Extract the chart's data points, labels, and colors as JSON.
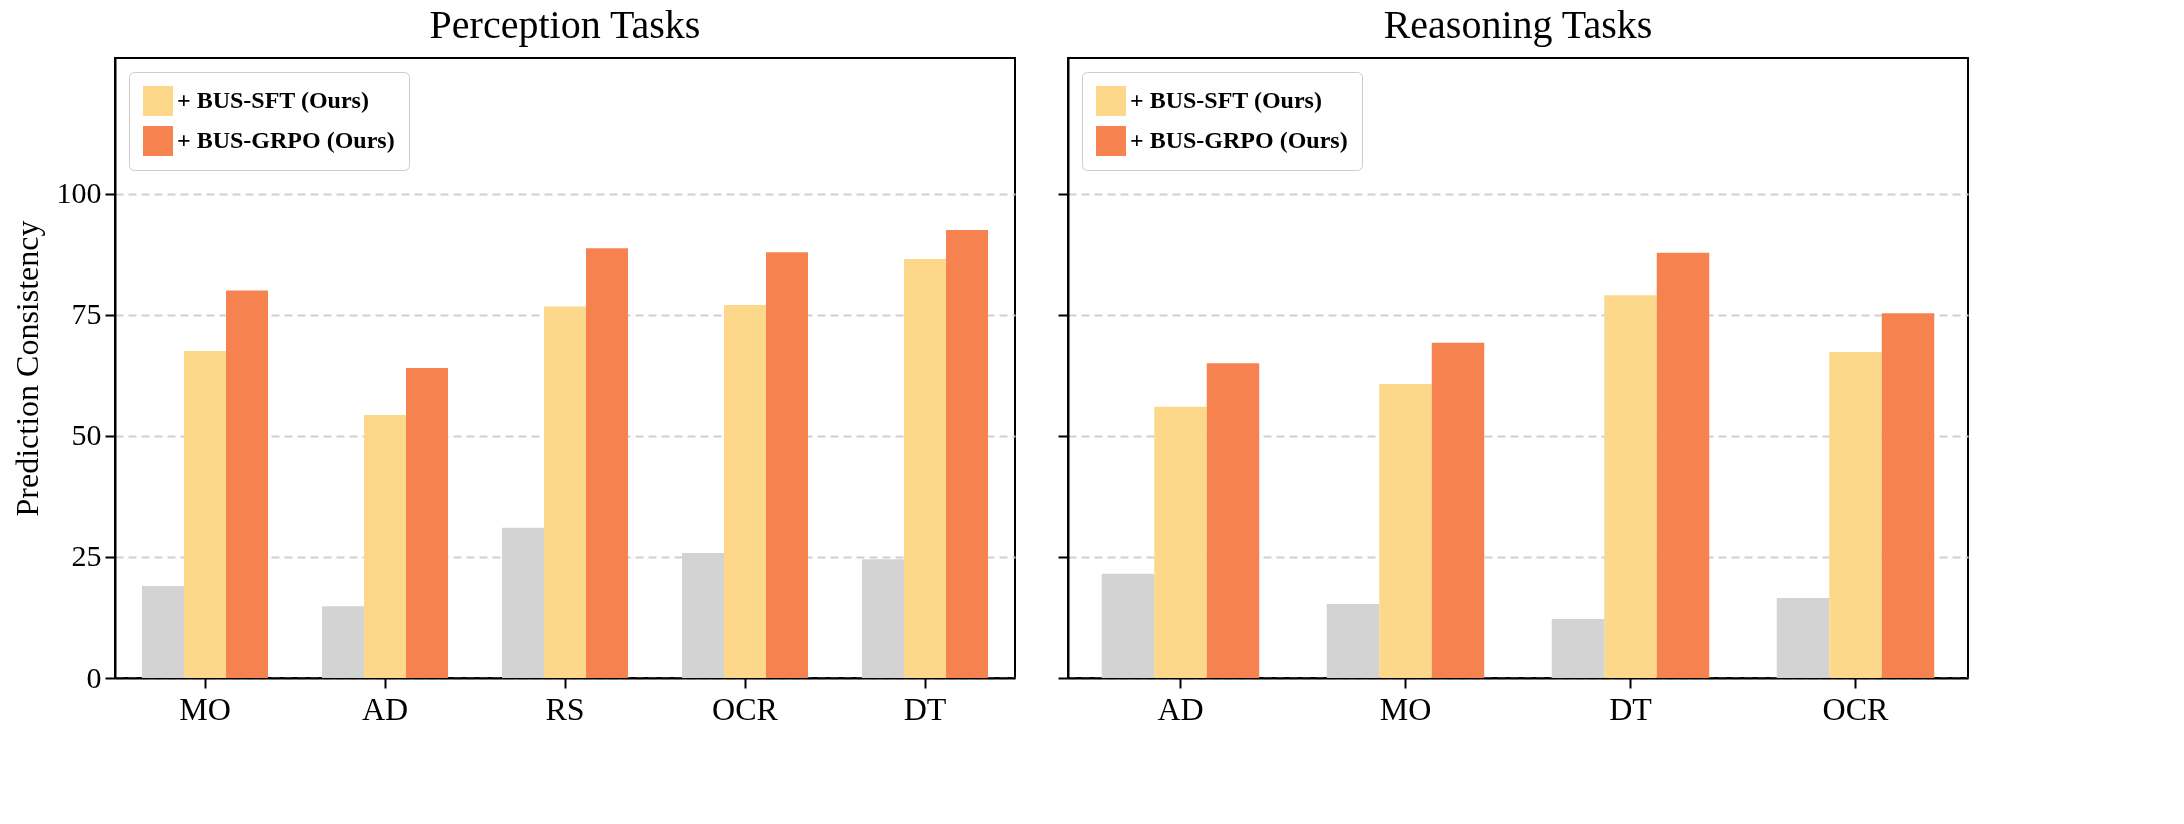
{
  "chart_data": [
    {
      "type": "bar",
      "title": "Perception Tasks",
      "ylabel": "Prediction  Consistency",
      "categories": [
        "MO",
        "AD",
        "RS",
        "OCR",
        "DT"
      ],
      "ylim": [
        0,
        128
      ],
      "yticks": [
        0,
        25,
        50,
        75,
        100
      ],
      "grid": "y",
      "legend": "top left",
      "series": [
        {
          "color": "#d3d3d3",
          "values": [
            19,
            14.8,
            31,
            25.8,
            24.5
          ]
        },
        {
          "name": "+ BUS-SFT (Ours)",
          "color": "#fdd88a",
          "values": [
            67.5,
            54.3,
            76.7,
            77,
            86.5
          ]
        },
        {
          "name": "+ BUS-GRPO (Ours)",
          "color": "#f6824f",
          "values": [
            80,
            64,
            88.7,
            87.9,
            92.5
          ]
        }
      ]
    },
    {
      "type": "bar",
      "title": "Reasoning Tasks",
      "categories": [
        "AD",
        "MO",
        "DT",
        "OCR"
      ],
      "ylim": [
        0,
        128
      ],
      "yticks": [
        0,
        25,
        50,
        75,
        100
      ],
      "grid": "y",
      "legend": "top left",
      "tick_labels": "x",
      "series": [
        {
          "color": "#d3d3d3",
          "values": [
            21.5,
            15.3,
            12.2,
            16.5
          ]
        },
        {
          "name": "+ BUS-SFT (Ours)",
          "color": "#fdd88a",
          "values": [
            56,
            60.7,
            79,
            67.3
          ]
        },
        {
          "name": "+ BUS-GRPO (Ours)",
          "color": "#f6824f",
          "values": [
            65,
            69.2,
            87.8,
            75.3
          ]
        }
      ]
    }
  ]
}
